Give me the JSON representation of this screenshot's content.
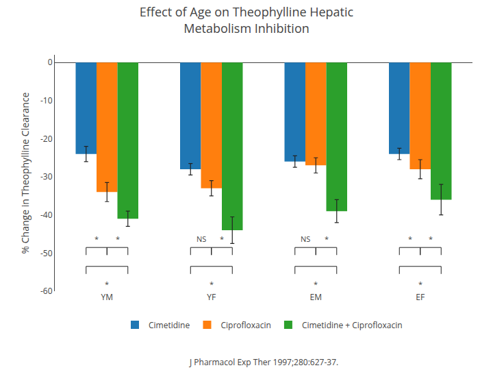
{
  "chart_data": {
    "type": "bar",
    "title": "Effect of Age on Theophylline Hepatic\nMetabolism Inhibition",
    "source": "J Pharmacol Exp Ther 1997;280:627-37.",
    "ylabel": "% Change in Theophylline Clearance",
    "categories": [
      "YM",
      "YF",
      "EM",
      "EF"
    ],
    "series": [
      {
        "name": "Cimetidine",
        "values": [
          -24,
          -28,
          -26,
          -24
        ],
        "errors": [
          2.0,
          1.5,
          1.5,
          1.5
        ]
      },
      {
        "name": "Ciprofloxacin",
        "values": [
          -34,
          -33,
          -27,
          -28
        ],
        "errors": [
          2.5,
          2.0,
          2.0,
          2.5
        ]
      },
      {
        "name": "Cimetidine + Ciprofloxacin",
        "values": [
          -41,
          -44,
          -39,
          -36
        ],
        "errors": [
          2.0,
          3.5,
          3.0,
          4.0
        ]
      }
    ],
    "ylim": [
      -60,
      2
    ],
    "yticks": [
      0,
      -10,
      -20,
      -30,
      -40,
      -50,
      -60
    ],
    "grid": false,
    "legend": "bottom",
    "annotations": [
      {
        "category": "YM",
        "from": "Cimetidine",
        "to": "Ciprofloxacin",
        "text": "*"
      },
      {
        "category": "YM",
        "from": "Ciprofloxacin",
        "to": "Cimetidine + Ciprofloxacin",
        "text": "*"
      },
      {
        "category": "YM",
        "from": "Cimetidine",
        "to": "Cimetidine + Ciprofloxacin",
        "text": "*"
      },
      {
        "category": "YF",
        "from": "Cimetidine",
        "to": "Ciprofloxacin",
        "text": "NS"
      },
      {
        "category": "YF",
        "from": "Ciprofloxacin",
        "to": "Cimetidine + Ciprofloxacin",
        "text": "*"
      },
      {
        "category": "YF",
        "from": "Cimetidine",
        "to": "Cimetidine + Ciprofloxacin",
        "text": "*"
      },
      {
        "category": "EM",
        "from": "Cimetidine",
        "to": "Ciprofloxacin",
        "text": "NS"
      },
      {
        "category": "EM",
        "from": "Ciprofloxacin",
        "to": "Cimetidine + Ciprofloxacin",
        "text": "*"
      },
      {
        "category": "EM",
        "from": "Cimetidine",
        "to": "Cimetidine + Ciprofloxacin",
        "text": "*"
      },
      {
        "category": "EF",
        "from": "Cimetidine",
        "to": "Ciprofloxacin",
        "text": "*"
      },
      {
        "category": "EF",
        "from": "Ciprofloxacin",
        "to": "Cimetidine + Ciprofloxacin",
        "text": "*"
      },
      {
        "category": "EF",
        "from": "Cimetidine",
        "to": "Cimetidine + Ciprofloxacin",
        "text": "*"
      }
    ]
  }
}
